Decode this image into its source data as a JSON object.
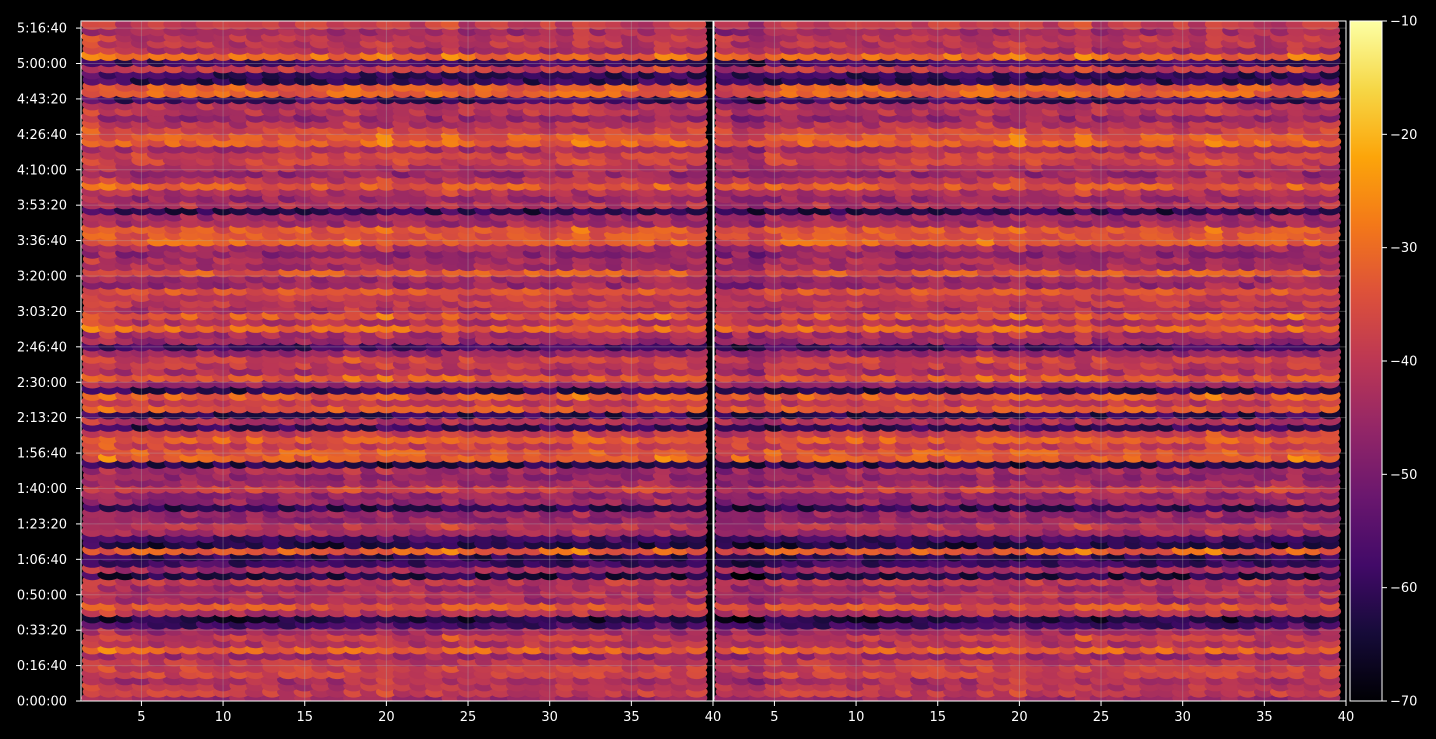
{
  "chart_data": {
    "type": "heatmap",
    "title": "",
    "xlabel": "",
    "ylabel": "",
    "panels": [
      {
        "name": "",
        "x_range": [
          1.3,
          40
        ],
        "x_ticks": [
          "5",
          "10",
          "15",
          "20",
          "25",
          "30",
          "35",
          "40"
        ],
        "x_tick_values": [
          5,
          10,
          15,
          20,
          25,
          30,
          35,
          40
        ]
      },
      {
        "name": "",
        "x_range": [
          1.3,
          40
        ],
        "x_ticks": [
          "5",
          "10",
          "15",
          "20",
          "25",
          "30",
          "35",
          "40"
        ],
        "x_tick_values": [
          5,
          10,
          15,
          20,
          25,
          30,
          35,
          40
        ]
      }
    ],
    "y_range_seconds": [
      0,
      19200
    ],
    "y_ticks": [
      "0:00:00",
      "0:16:40",
      "0:33:20",
      "0:50:00",
      "1:06:40",
      "1:23:20",
      "1:40:00",
      "1:56:40",
      "2:13:20",
      "2:30:00",
      "2:46:40",
      "3:03:20",
      "3:20:00",
      "3:36:40",
      "3:53:20",
      "4:10:00",
      "4:26:40",
      "4:43:20",
      "5:00:00",
      "5:16:40"
    ],
    "y_tick_values": [
      0,
      1000,
      2000,
      3000,
      4000,
      5000,
      6000,
      7000,
      8000,
      9000,
      10000,
      11000,
      12000,
      13000,
      14000,
      15000,
      16000,
      17000,
      18000,
      19000
    ],
    "colorbar": {
      "colormap": "inferno",
      "range": [
        -70,
        -10
      ],
      "ticks": [
        "−10",
        "−20",
        "−30",
        "−40",
        "−50",
        "−60",
        "−70"
      ],
      "tick_values": [
        -10,
        -20,
        -30,
        -40,
        -50,
        -60,
        -70
      ]
    },
    "grid": true,
    "colors": {
      "background": "#000000",
      "grid": "#b0b0b0"
    }
  }
}
